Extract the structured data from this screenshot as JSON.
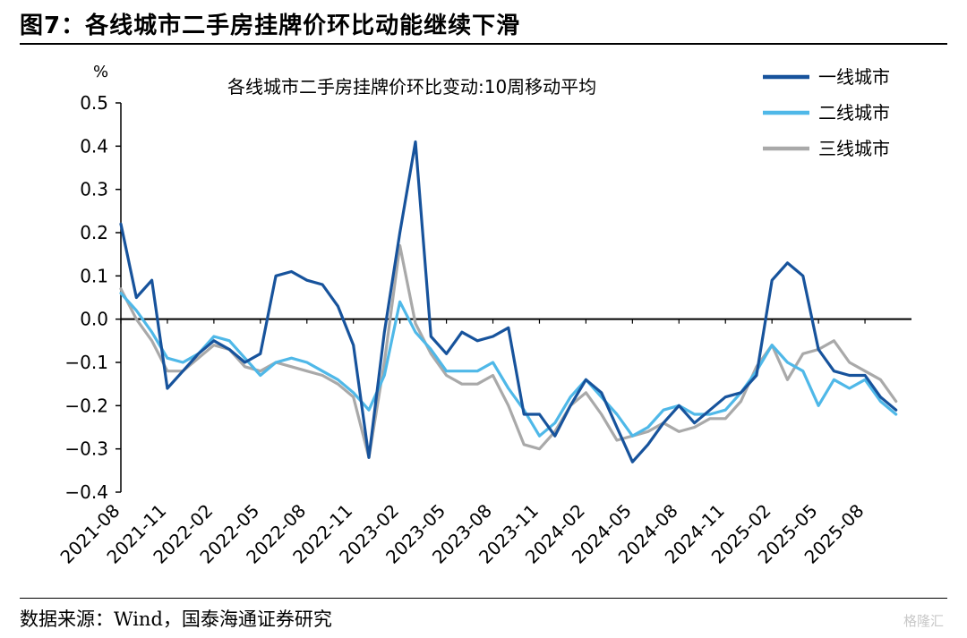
{
  "figure": {
    "title": "图7：各线城市二手房挂牌价环比动能继续下滑",
    "source": "数据来源：Wind，国泰海通证券研究",
    "watermark": "格隆汇"
  },
  "chart_data": {
    "type": "line",
    "title": "各线城市二手房挂牌价环比变动:10周移动平均",
    "ylabel": "%",
    "xlabel": "",
    "ylim": [
      -0.4,
      0.5
    ],
    "yticks": [
      0.5,
      0.4,
      0.3,
      0.2,
      0.1,
      0.0,
      -0.1,
      -0.2,
      -0.3,
      -0.4
    ],
    "ytick_labels": [
      "0.5",
      "0.4",
      "0.3",
      "0.2",
      "0.1",
      "0.0",
      "−0.1",
      "−0.2",
      "−0.3",
      "−0.4"
    ],
    "xlim": [
      "2021-08",
      "2025-11"
    ],
    "xticks": [
      "2021-08",
      "2021-11",
      "2022-02",
      "2022-05",
      "2022-08",
      "2022-11",
      "2023-02",
      "2023-05",
      "2023-08",
      "2023-11",
      "2024-02",
      "2024-05",
      "2024-08",
      "2024-11",
      "2025-02",
      "2025-05",
      "2025-08"
    ],
    "grid": false,
    "legend_position": "top-right",
    "zero_line": true,
    "series": [
      {
        "name": "一线城市",
        "color": "#17539c",
        "x": [
          "2021-08",
          "2021-09",
          "2021-10",
          "2021-11",
          "2021-12",
          "2022-01",
          "2022-02",
          "2022-03",
          "2022-04",
          "2022-05",
          "2022-06",
          "2022-07",
          "2022-08",
          "2022-09",
          "2022-10",
          "2022-11",
          "2022-12",
          "2023-01",
          "2023-02",
          "2023-03",
          "2023-04",
          "2023-05",
          "2023-06",
          "2023-07",
          "2023-08",
          "2023-09",
          "2023-10",
          "2023-11",
          "2023-12",
          "2024-01",
          "2024-02",
          "2024-03",
          "2024-04",
          "2024-05",
          "2024-06",
          "2024-07",
          "2024-08",
          "2024-09",
          "2024-10",
          "2024-11",
          "2024-12",
          "2025-01",
          "2025-02",
          "2025-03",
          "2025-04",
          "2025-05",
          "2025-06",
          "2025-07",
          "2025-08",
          "2025-09",
          "2025-10"
        ],
        "values": [
          0.22,
          0.05,
          0.09,
          -0.16,
          -0.12,
          -0.08,
          -0.05,
          -0.07,
          -0.1,
          -0.08,
          0.1,
          0.11,
          0.09,
          0.08,
          0.03,
          -0.06,
          -0.32,
          -0.03,
          0.2,
          0.41,
          -0.04,
          -0.08,
          -0.03,
          -0.05,
          -0.04,
          -0.02,
          -0.22,
          -0.22,
          -0.27,
          -0.2,
          -0.14,
          -0.17,
          -0.25,
          -0.33,
          -0.29,
          -0.24,
          -0.2,
          -0.24,
          -0.21,
          -0.18,
          -0.17,
          -0.13,
          0.09,
          0.13,
          0.1,
          -0.07,
          -0.12,
          -0.13,
          -0.13,
          -0.18,
          -0.21
        ]
      },
      {
        "name": "二线城市",
        "color": "#4fb8e8",
        "x": [
          "2021-08",
          "2021-09",
          "2021-10",
          "2021-11",
          "2021-12",
          "2022-01",
          "2022-02",
          "2022-03",
          "2022-04",
          "2022-05",
          "2022-06",
          "2022-07",
          "2022-08",
          "2022-09",
          "2022-10",
          "2022-11",
          "2022-12",
          "2023-01",
          "2023-02",
          "2023-03",
          "2023-04",
          "2023-05",
          "2023-06",
          "2023-07",
          "2023-08",
          "2023-09",
          "2023-10",
          "2023-11",
          "2023-12",
          "2024-01",
          "2024-02",
          "2024-03",
          "2024-04",
          "2024-05",
          "2024-06",
          "2024-07",
          "2024-08",
          "2024-09",
          "2024-10",
          "2024-11",
          "2024-12",
          "2025-01",
          "2025-02",
          "2025-03",
          "2025-04",
          "2025-05",
          "2025-06",
          "2025-07",
          "2025-08",
          "2025-09",
          "2025-10"
        ],
        "values": [
          0.06,
          0.02,
          -0.03,
          -0.09,
          -0.1,
          -0.08,
          -0.04,
          -0.05,
          -0.09,
          -0.13,
          -0.1,
          -0.09,
          -0.1,
          -0.12,
          -0.14,
          -0.17,
          -0.21,
          -0.13,
          0.04,
          -0.03,
          -0.07,
          -0.12,
          -0.12,
          -0.12,
          -0.1,
          -0.16,
          -0.21,
          -0.27,
          -0.24,
          -0.18,
          -0.14,
          -0.18,
          -0.22,
          -0.27,
          -0.25,
          -0.21,
          -0.2,
          -0.22,
          -0.22,
          -0.21,
          -0.17,
          -0.12,
          -0.06,
          -0.1,
          -0.12,
          -0.2,
          -0.14,
          -0.16,
          -0.14,
          -0.19,
          -0.22
        ]
      },
      {
        "name": "三线城市",
        "color": "#a9a9a9",
        "x": [
          "2021-08",
          "2021-09",
          "2021-10",
          "2021-11",
          "2021-12",
          "2022-01",
          "2022-02",
          "2022-03",
          "2022-04",
          "2022-05",
          "2022-06",
          "2022-07",
          "2022-08",
          "2022-09",
          "2022-10",
          "2022-11",
          "2022-12",
          "2023-01",
          "2023-02",
          "2023-03",
          "2023-04",
          "2023-05",
          "2023-06",
          "2023-07",
          "2023-08",
          "2023-09",
          "2023-10",
          "2023-11",
          "2023-12",
          "2024-01",
          "2024-02",
          "2024-03",
          "2024-04",
          "2024-05",
          "2024-06",
          "2024-07",
          "2024-08",
          "2024-09",
          "2024-10",
          "2024-11",
          "2024-12",
          "2025-01",
          "2025-02",
          "2025-03",
          "2025-04",
          "2025-05",
          "2025-06",
          "2025-07",
          "2025-08",
          "2025-09",
          "2025-10"
        ],
        "values": [
          0.07,
          0.0,
          -0.05,
          -0.12,
          -0.12,
          -0.09,
          -0.06,
          -0.07,
          -0.11,
          -0.12,
          -0.1,
          -0.11,
          -0.12,
          -0.13,
          -0.15,
          -0.18,
          -0.32,
          -0.1,
          0.17,
          -0.01,
          -0.08,
          -0.13,
          -0.15,
          -0.15,
          -0.13,
          -0.2,
          -0.29,
          -0.3,
          -0.26,
          -0.2,
          -0.17,
          -0.22,
          -0.28,
          -0.27,
          -0.26,
          -0.24,
          -0.26,
          -0.25,
          -0.23,
          -0.23,
          -0.19,
          -0.11,
          -0.06,
          -0.14,
          -0.08,
          -0.07,
          -0.05,
          -0.1,
          -0.12,
          -0.14,
          -0.19
        ]
      }
    ]
  }
}
